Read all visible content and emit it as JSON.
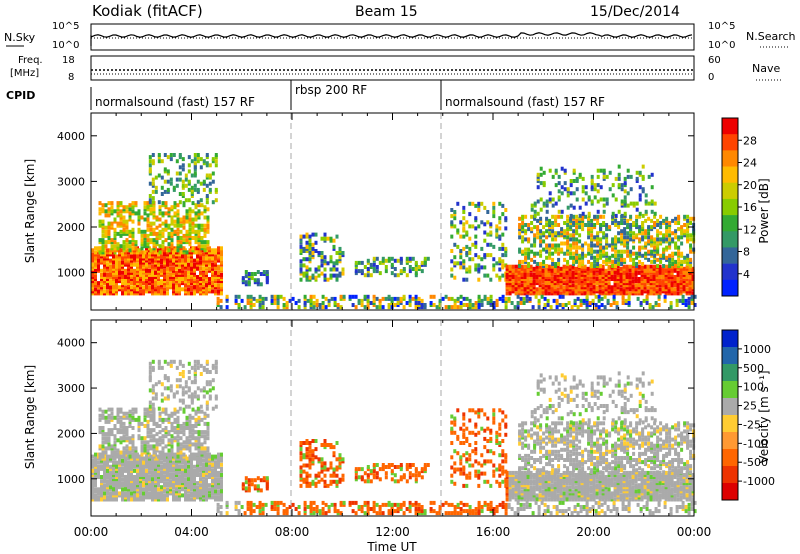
{
  "header": {
    "station": "Kodiak (fitACF)",
    "beam": "Beam 15",
    "date": "15/Dec/2014"
  },
  "summary": {
    "nsky_label": "N.Sky",
    "nsearch_label": "N.Search",
    "noise_ticks": [
      "10^5",
      "10^0"
    ],
    "freq_label_1": "Freq.",
    "freq_label_2": "[MHz]",
    "freq_ticks": [
      "18",
      "8"
    ],
    "nave_label": "Nave",
    "nave_ticks": [
      "60",
      "0"
    ],
    "cpid_label": "CPID",
    "modes": [
      {
        "label": "normalsound (fast) 157 RF",
        "start_hour": 0
      },
      {
        "label": "rbsp 200 RF",
        "start_hour": 8
      },
      {
        "label": "normalsound (fast) 157 RF",
        "start_hour": 14
      }
    ]
  },
  "chart_data": [
    {
      "type": "heatmap",
      "title": "",
      "xlabel": "Time UT",
      "ylabel": "Slant Range [km]",
      "x_ticks": [
        "00:00",
        "04:00",
        "08:00",
        "12:00",
        "16:00",
        "20:00",
        "00:00"
      ],
      "xlim": [
        0,
        24
      ],
      "y_ticks": [
        1000,
        2000,
        3000,
        4000
      ],
      "ylim": [
        180,
        4500
      ],
      "colorbar": {
        "label": "Power [dB]",
        "ticks": [
          "28",
          "24",
          "20",
          "16",
          "12",
          "8",
          "4"
        ],
        "colors": [
          "#ee0000",
          "#ff4400",
          "#ff8800",
          "#ffbb00",
          "#cccc00",
          "#88cc00",
          "#33aa33",
          "#339966",
          "#336699",
          "#2233cc",
          "#0022ff"
        ]
      },
      "mode_boundaries_hours": [
        8,
        14
      ]
    },
    {
      "type": "heatmap",
      "title": "",
      "xlabel": "Time UT",
      "ylabel": "Slant Range [km]",
      "x_ticks": [
        "00:00",
        "04:00",
        "08:00",
        "12:00",
        "16:00",
        "20:00",
        "00:00"
      ],
      "xlim": [
        0,
        24
      ],
      "y_ticks": [
        1000,
        2000,
        3000,
        4000
      ],
      "ylim": [
        180,
        4500
      ],
      "colorbar": {
        "label": "Velocity [m s⁻¹]",
        "ticks": [
          "1000",
          "500",
          "100",
          "25",
          "-25",
          "-100",
          "-500",
          "-1000"
        ],
        "colors": [
          "#0022cc",
          "#2266aa",
          "#339966",
          "#66cc33",
          "#aaaaaa",
          "#ffcc33",
          "#ff9933",
          "#ff6600",
          "#ee3300",
          "#dd0000"
        ]
      },
      "mode_boundaries_hours": [
        8,
        14
      ]
    }
  ]
}
